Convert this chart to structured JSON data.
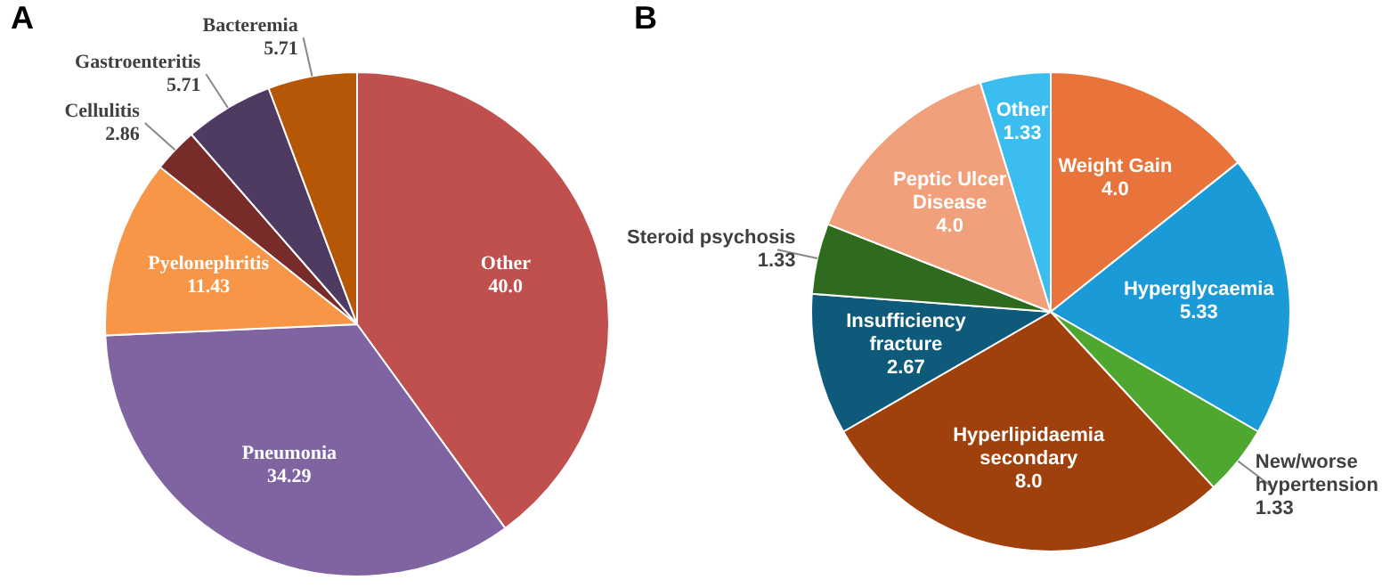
{
  "chart_data": [
    {
      "type": "pie",
      "title": "A",
      "categories": [
        "Other",
        "Pneumonia",
        "Pyelonephritis",
        "Cellulitis",
        "Gastroenteritis",
        "Bacteremia"
      ],
      "values": [
        40.0,
        34.29,
        11.43,
        2.86,
        5.71,
        5.71
      ],
      "value_labels": [
        "40.0",
        "34.29",
        "11.43",
        "2.86",
        "5.71",
        "5.71"
      ],
      "colors": [
        "#c0504d",
        "#8064a2",
        "#f79646",
        "#772c2a",
        "#4f3b62",
        "#b65708"
      ],
      "legend": false
    },
    {
      "type": "pie",
      "title": "B",
      "categories": [
        "Weight Gain",
        "Hyperglycaemia",
        "New/worse hypertension",
        "Hyperlipidaemia secondary",
        "Insufficiency fracture",
        "Steroid psychosis",
        "Peptic Ulcer Disease",
        "Other"
      ],
      "values": [
        4.0,
        5.33,
        1.33,
        8.0,
        2.67,
        1.33,
        4.0,
        1.33
      ],
      "value_labels": [
        "4.0",
        "5.33",
        "1.33",
        "8.0",
        "2.67",
        "1.33",
        "4.0",
        "1.33"
      ],
      "colors": [
        "#e8743b",
        "#1a9bd7",
        "#4ea72e",
        "#a0410d",
        "#0e5a7a",
        "#2f6b1f",
        "#f0a07a",
        "#3bbdf0"
      ],
      "legend": false
    }
  ]
}
